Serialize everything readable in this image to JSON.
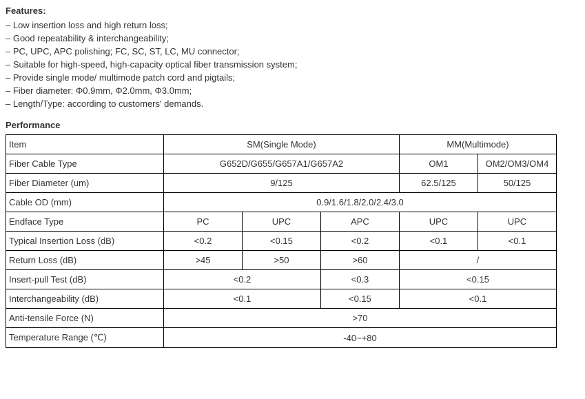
{
  "features": {
    "title": "Features:",
    "items": [
      "– Low insertion loss and high return loss;",
      "– Good repeatability & interchangeability;",
      "– PC, UPC, APC polishing; FC, SC, ST, LC, MU connector;",
      "– Suitable for high-speed, high-capacity optical fiber transmission system;",
      "– Provide single mode/ multimode patch cord and pigtails;",
      "– Fiber diameter: Φ0.9mm, Φ2.0mm, Φ3.0mm;",
      "– Length/Type: according to customers' demands."
    ]
  },
  "performance": {
    "title": "Performance",
    "rows": {
      "header": {
        "item": "Item",
        "sm": "SM(Single Mode)",
        "mm": "MM(Multimode)"
      },
      "fiberCable": {
        "label": "Fiber Cable Type",
        "sm": "G652D/G655/G657A1/G657A2",
        "mm1": "OM1",
        "mm2": "OM2/OM3/OM4"
      },
      "fiberDiameter": {
        "label": "Fiber Diameter (um)",
        "sm": "9/125",
        "mm1": "62.5/125",
        "mm2": "50/125"
      },
      "cableOD": {
        "label": "Cable OD (mm)",
        "value": "0.9/1.6/1.8/2.0/2.4/3.0"
      },
      "endface": {
        "label": "Endface Type",
        "c1": "PC",
        "c2": "UPC",
        "c3": "APC",
        "c4": "UPC",
        "c5": "UPC"
      },
      "insertionLoss": {
        "label": "Typical Insertion Loss (dB)",
        "c1": "<0.2",
        "c2": "<0.15",
        "c3": "<0.2",
        "c4": "<0.1",
        "c5": "<0.1"
      },
      "returnLoss": {
        "label": "Return Loss (dB)",
        "c1": ">45",
        "c2": ">50",
        "c3": ">60",
        "mm": "/"
      },
      "insertPull": {
        "label": "Insert-pull Test (dB)",
        "g1": "<0.2",
        "g2": "<0.3",
        "g3": "<0.15"
      },
      "interchange": {
        "label": "Interchangeability (dB)",
        "g1": "<0.1",
        "g2": "<0.15",
        "g3": "<0.1"
      },
      "antiTensile": {
        "label": "Anti-tensile Force (N)",
        "value": ">70"
      },
      "tempRange": {
        "label": "Temperature Range (℃)",
        "value": "-40~+80"
      }
    }
  }
}
